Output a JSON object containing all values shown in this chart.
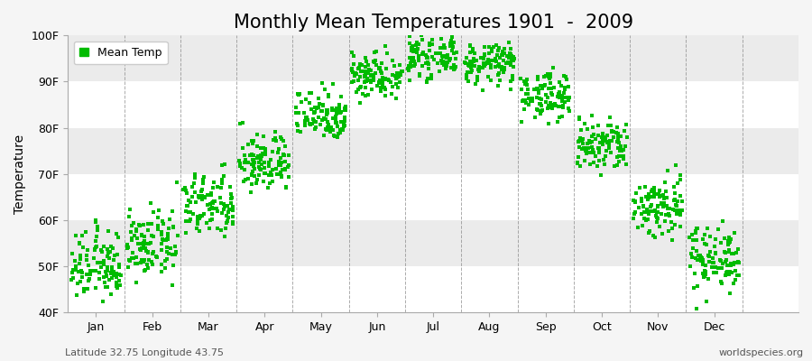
{
  "title": "Monthly Mean Temperatures 1901  -  2009",
  "ylabel": "Temperature",
  "subtitle_left": "Latitude 32.75 Longitude 43.75",
  "subtitle_right": "worldspecies.org",
  "legend_label": "Mean Temp",
  "ylim": [
    40,
    100
  ],
  "yticks": [
    40,
    50,
    60,
    70,
    80,
    90,
    100
  ],
  "ytick_labels": [
    "40F",
    "50F",
    "60F",
    "70F",
    "80F",
    "90F",
    "100F"
  ],
  "month_labels": [
    "Jan",
    "Feb",
    "Mar",
    "Apr",
    "May",
    "Jun",
    "Jul",
    "Aug",
    "Sep",
    "Oct",
    "Nov",
    "Dec"
  ],
  "monthly_mean_F": [
    50.0,
    54.5,
    63.0,
    72.5,
    83.0,
    91.5,
    95.5,
    94.0,
    87.0,
    76.0,
    63.0,
    52.0
  ],
  "monthly_std_F": [
    3.8,
    3.5,
    3.5,
    3.2,
    2.8,
    2.5,
    2.2,
    2.2,
    2.5,
    3.0,
    3.5,
    3.5
  ],
  "n_years": 109,
  "scatter_color": "#00bb00",
  "marker_size": 5,
  "bg_color": "#f5f5f5",
  "band_colors": [
    "#ffffff",
    "#ebebeb"
  ],
  "grid_color": "#888888",
  "title_fontsize": 15,
  "axis_fontsize": 10,
  "tick_fontsize": 9,
  "legend_fontsize": 9,
  "subtitle_fontsize": 8
}
